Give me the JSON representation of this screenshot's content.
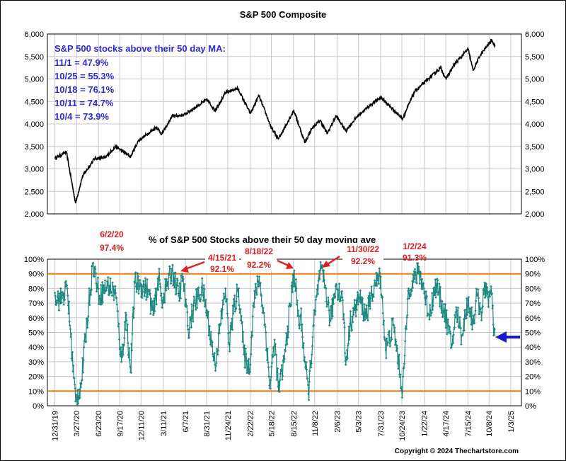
{
  "chart_data": [
    {
      "type": "line",
      "title": "S&P 500 Composite",
      "ylim": [
        2000,
        6000
      ],
      "yticks": [
        "2,000",
        "2,500",
        "3,000",
        "3,500",
        "4,000",
        "4,500",
        "5,000",
        "5,500",
        "6,000"
      ],
      "grid": true,
      "notes": [
        "S&P 500 stocks above their 50 day MA:",
        "11/1 = 47.9%",
        "10/25 = 55.3%",
        "10/18 = 76.1%",
        "10/11 = 74.7%",
        "10/4 = 73.9%"
      ],
      "series": [
        {
          "x": [
            "12/31/19",
            "2/15/20",
            "3/23/20",
            "4/20/20",
            "6/8/20",
            "7/20/20",
            "8/31/20",
            "10/30/20",
            "11/30/20",
            "12/31/20",
            "2/12/21",
            "3/4/21",
            "4/15/21",
            "6/1/21",
            "7/15/21",
            "9/2/21",
            "10/4/21",
            "11/15/21",
            "1/3/22",
            "2/23/22",
            "3/29/22",
            "5/19/22",
            "6/16/22",
            "8/16/22",
            "9/30/22",
            "10/28/22",
            "11/30/22",
            "12/28/22",
            "2/2/23",
            "3/13/23",
            "4/28/23",
            "6/15/23",
            "7/31/23",
            "10/27/23",
            "12/14/23",
            "2/12/24",
            "3/28/24",
            "4/19/24",
            "5/21/24",
            "7/16/24",
            "8/5/24",
            "9/3/24",
            "10/18/24",
            "11/1/24"
          ],
          "values": [
            3231,
            3380,
            2237,
            2840,
            3230,
            3250,
            3500,
            3270,
            3620,
            3756,
            3930,
            3770,
            4170,
            4200,
            4360,
            4540,
            4300,
            4690,
            4796,
            4225,
            4630,
            3900,
            3667,
            4300,
            3585,
            3900,
            4080,
            3783,
            4180,
            3850,
            4170,
            4400,
            4590,
            4117,
            4720,
            5020,
            5250,
            5000,
            5320,
            5667,
            5186,
            5530,
            5865,
            5728
          ]
        }
      ]
    },
    {
      "type": "line",
      "title": "% of S&P 500 Stocks above their 50 day moving ave",
      "ylim": [
        0,
        100
      ],
      "yticks": [
        "0%",
        "10%",
        "20%",
        "30%",
        "40%",
        "50%",
        "60%",
        "70%",
        "80%",
        "90%",
        "100%"
      ],
      "reference_lines": [
        10,
        90
      ],
      "x_tick_labels": [
        "12/31/19",
        "3/27/20",
        "6/23/20",
        "9/17/20",
        "12/11/20",
        "3/11/21",
        "6/7/21",
        "8/31/21",
        "11/24/21",
        "2/22/22",
        "5/18/22",
        "8/15/22",
        "11/8/22",
        "2/6/23",
        "5/3/23",
        "7/31/23",
        "10/24/23",
        "1/22/24",
        "4/17/24",
        "7/15/24",
        "10/8/24",
        "1/3/25"
      ],
      "annotations": [
        {
          "date": "6/2/20",
          "value": "97.4%"
        },
        {
          "date": "4/15/21",
          "value": "92.1%"
        },
        {
          "date": "8/18/22",
          "value": "92.2%"
        },
        {
          "date": "11/30/22",
          "value": "92.2%"
        },
        {
          "date": "1/2/24",
          "value": "91.3%"
        }
      ],
      "series": [
        {
          "x": [
            "12/31/19",
            "1/20/20",
            "2/19/20",
            "3/23/20",
            "4/15/20",
            "5/15/20",
            "6/2/20",
            "6/26/20",
            "7/30/20",
            "8/31/20",
            "9/23/20",
            "10/12/20",
            "10/30/20",
            "11/16/20",
            "12/10/20",
            "1/8/21",
            "1/29/21",
            "2/20/21",
            "3/4/21",
            "4/15/21",
            "5/12/21",
            "5/28/21",
            "6/18/21",
            "7/15/21",
            "8/15/21",
            "9/5/21",
            "10/4/21",
            "10/25/21",
            "11/15/21",
            "11/30/21",
            "12/20/21",
            "1/7/22",
            "1/28/22",
            "2/20/22",
            "3/8/22",
            "3/30/22",
            "4/26/22",
            "5/12/22",
            "5/31/22",
            "6/16/22",
            "7/8/22",
            "8/18/22",
            "9/6/22",
            "9/13/22",
            "9/30/22",
            "10/14/22",
            "11/4/22",
            "11/30/22",
            "12/20/22",
            "1/10/23",
            "2/2/23",
            "3/1/23",
            "3/13/23",
            "3/30/23",
            "5/5/23",
            "5/30/23",
            "6/15/23",
            "7/5/23",
            "7/31/23",
            "8/20/23",
            "9/20/23",
            "10/27/23",
            "11/20/23",
            "12/5/23",
            "1/2/24",
            "1/20/24",
            "2/10/24",
            "3/10/24",
            "3/28/24",
            "4/19/24",
            "5/10/24",
            "5/31/24",
            "6/20/24",
            "7/16/24",
            "8/5/24",
            "8/20/24",
            "9/6/24",
            "9/27/24",
            "10/4/24",
            "10/11/24",
            "10/18/24",
            "10/25/24",
            "11/1/24"
          ],
          "values": [
            77,
            72,
            80,
            3,
            15,
            70,
            97.4,
            75,
            82,
            77,
            30,
            62,
            23,
            84,
            82,
            79,
            62,
            88,
            72,
            92.1,
            75,
            88,
            52,
            70,
            80,
            60,
            28,
            55,
            80,
            42,
            68,
            80,
            35,
            25,
            70,
            88,
            50,
            12,
            45,
            10,
            30,
            92.2,
            55,
            62,
            30,
            8,
            55,
            92.2,
            82,
            58,
            83,
            72,
            28,
            56,
            74,
            62,
            68,
            82,
            88,
            38,
            55,
            10,
            80,
            85,
            91.3,
            80,
            62,
            83,
            72,
            60,
            40,
            65,
            48,
            72,
            56,
            75,
            64,
            83,
            73.9,
            74.7,
            76.1,
            55.3,
            47.9
          ]
        }
      ]
    },
    {
      "type": "annotation",
      "copyright": "Copyright © 2024 Thechartstore.com"
    }
  ]
}
